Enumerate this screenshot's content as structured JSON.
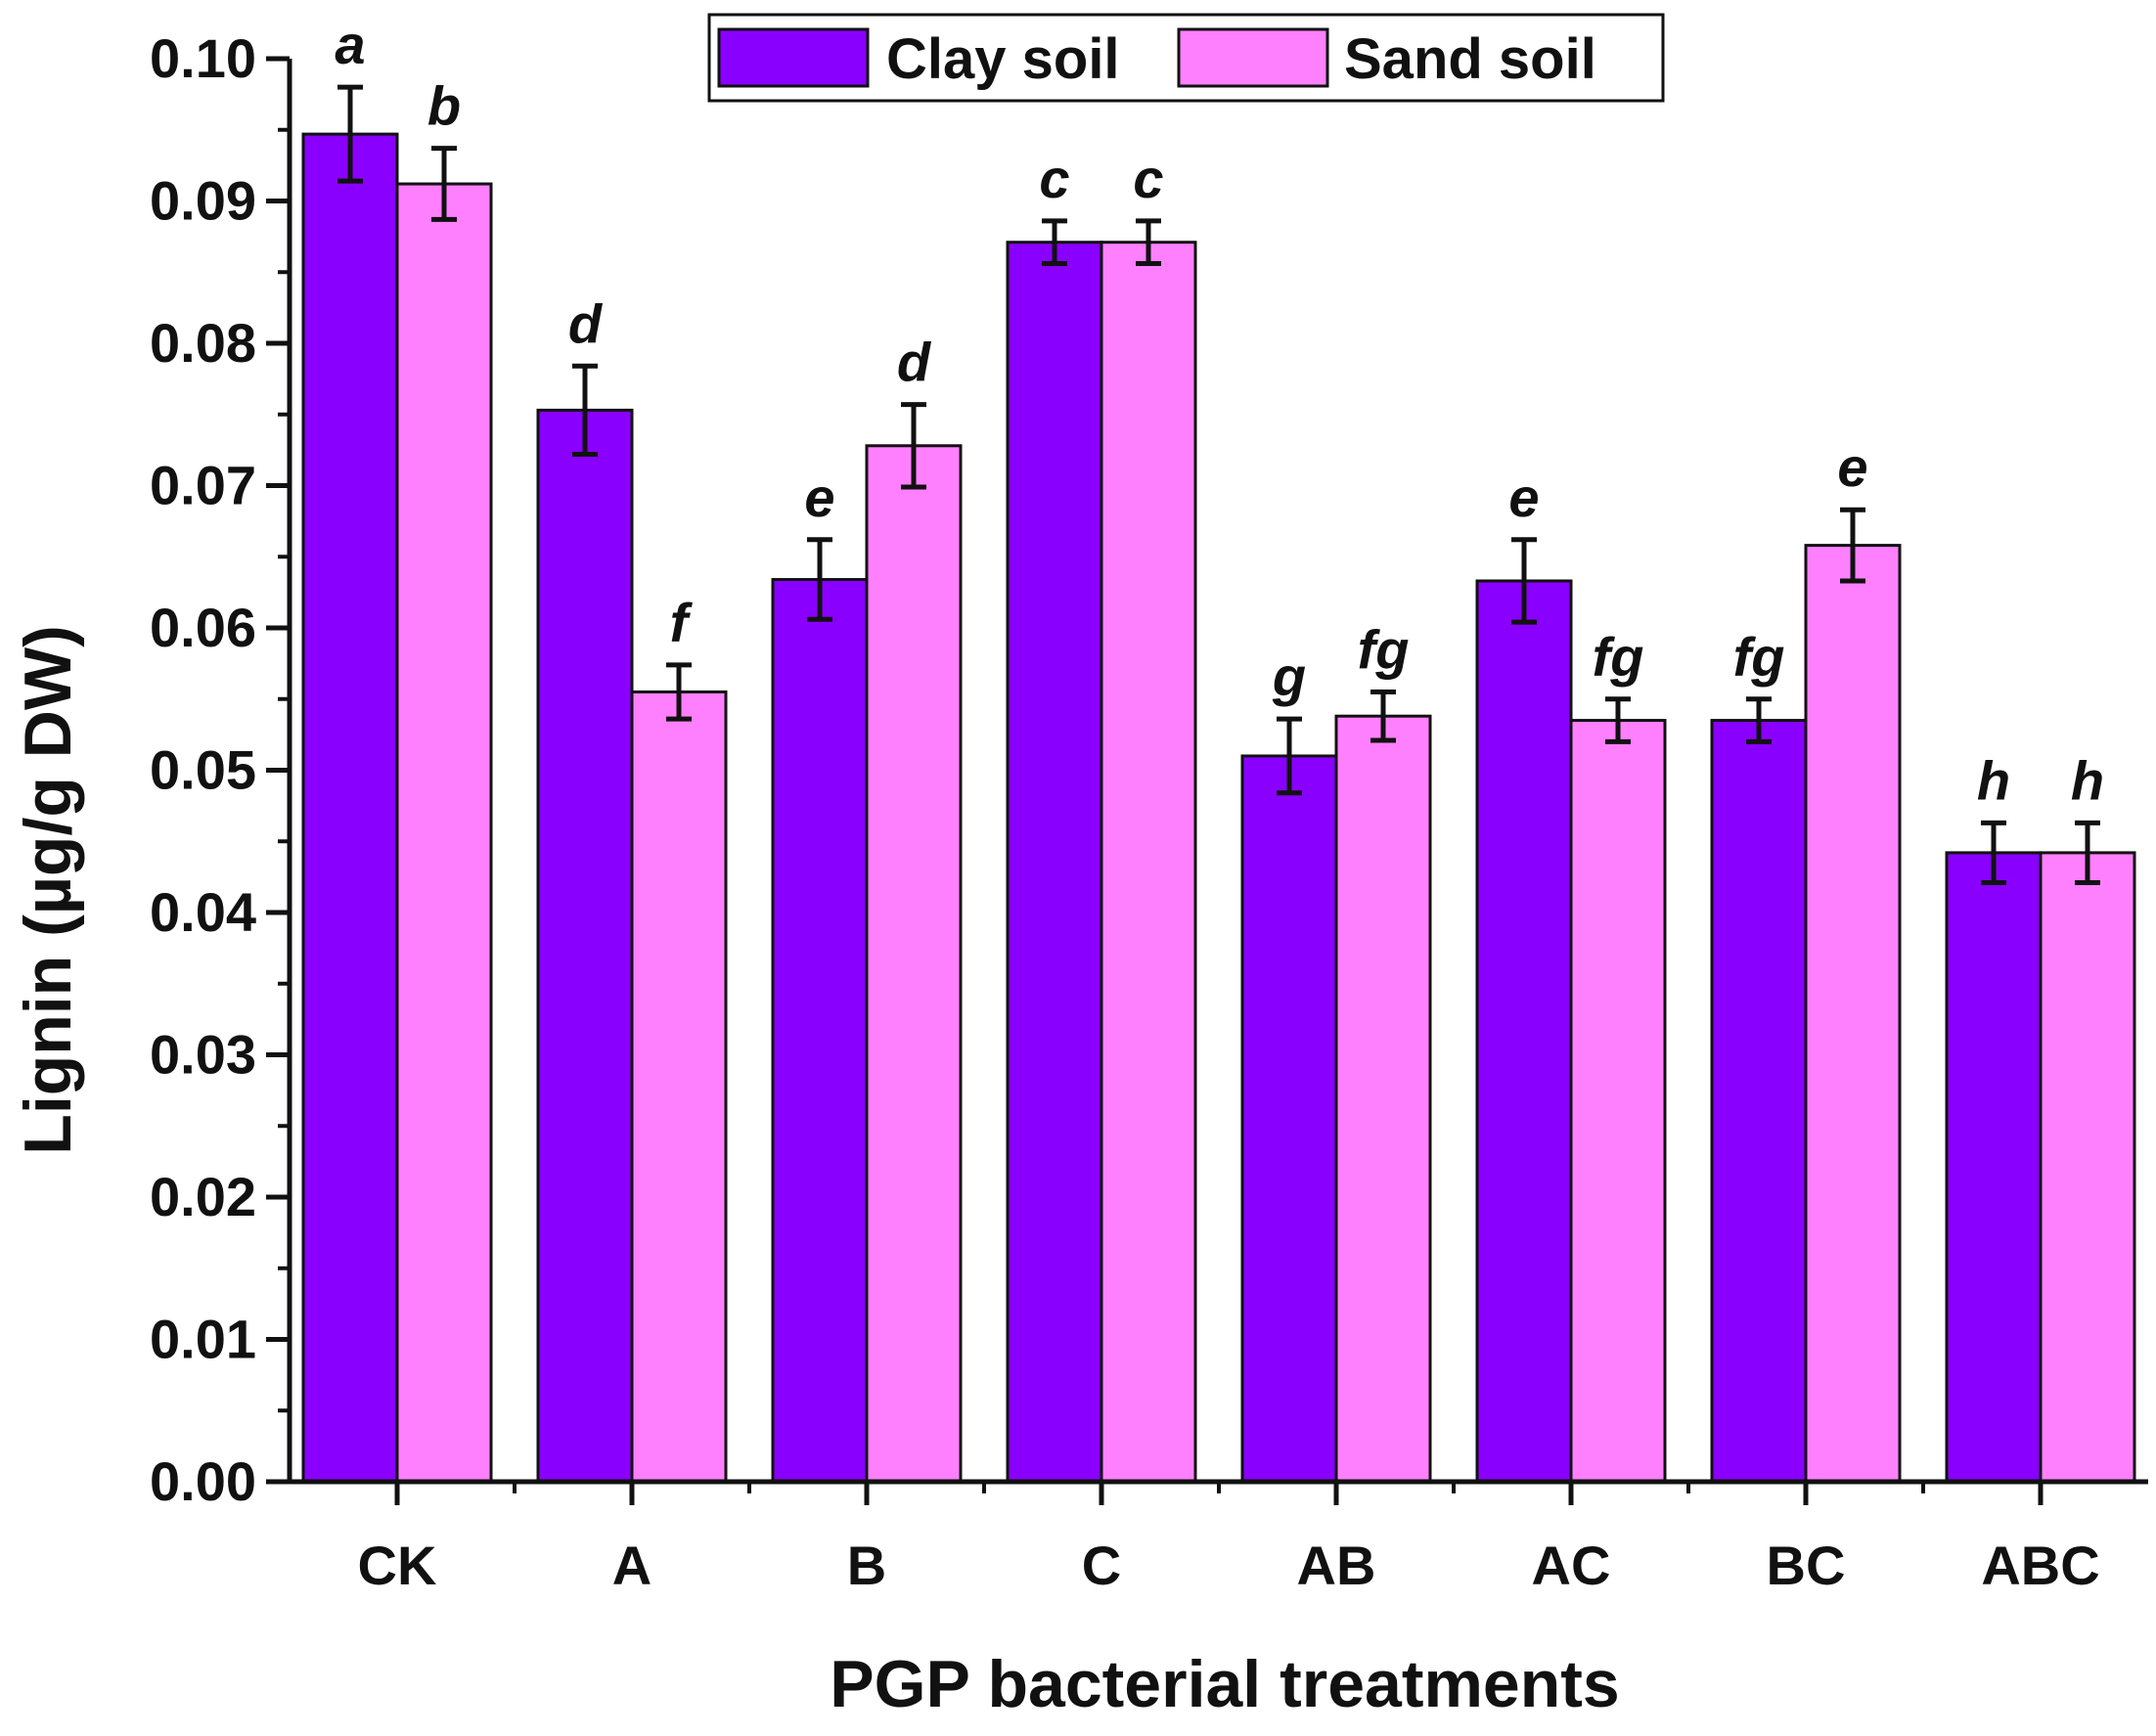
{
  "chart_data": {
    "type": "bar",
    "xlabel": "PGP bacterial treatments",
    "ylabel": "Lignin (µg/g DW)",
    "categories": [
      "CK",
      "A",
      "B",
      "C",
      "AB",
      "AC",
      "BC",
      "ABC"
    ],
    "ylim": [
      0,
      0.1
    ],
    "yticks": [
      "0.00",
      "0.01",
      "0.02",
      "0.03",
      "0.04",
      "0.05",
      "0.06",
      "0.07",
      "0.08",
      "0.09",
      "0.10"
    ],
    "legend_position": "top-center",
    "grid": false,
    "series": [
      {
        "name": "Clay soil",
        "color": "#8a00ff",
        "values": [
          0.0947,
          0.0753,
          0.0634,
          0.0871,
          0.051,
          0.0633,
          0.0535,
          0.0442
        ],
        "errors": [
          0.0033,
          0.0031,
          0.0028,
          0.0015,
          0.0026,
          0.0029,
          0.0015,
          0.0021
        ],
        "labels": [
          "a",
          "d",
          "e",
          "c",
          "g",
          "e",
          "fg",
          "h"
        ]
      },
      {
        "name": "Sand soil",
        "color": "#ff80ff",
        "values": [
          0.0912,
          0.0555,
          0.0728,
          0.0871,
          0.0538,
          0.0535,
          0.0658,
          0.0442
        ],
        "errors": [
          0.0025,
          0.0019,
          0.0029,
          0.0015,
          0.0017,
          0.0015,
          0.0025,
          0.0021
        ],
        "labels": [
          "b",
          "f",
          "d",
          "c",
          "fg",
          "fg",
          "e",
          "h"
        ]
      }
    ]
  }
}
